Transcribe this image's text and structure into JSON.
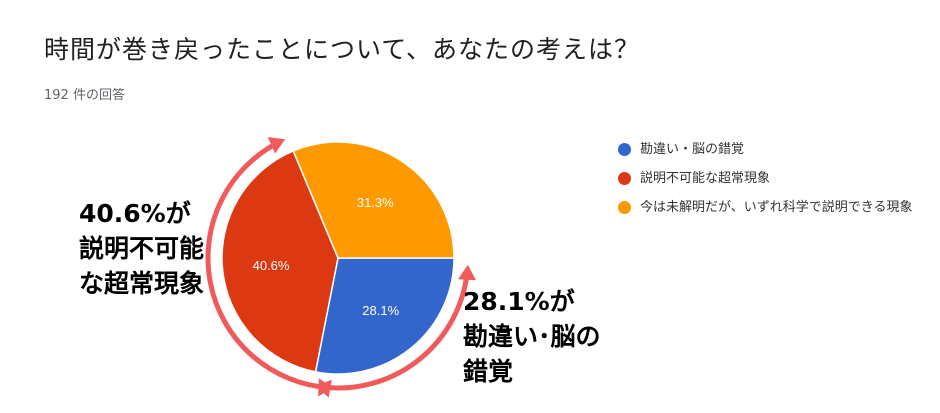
{
  "title": "時間が巻き戻ったことについて、あなたの考えは？",
  "response_count": "192 件の回答",
  "chart_data": {
    "type": "pie",
    "title": "時間が巻き戻ったことについて、あなたの考えは？",
    "slices": [
      {
        "name": "勘違い・脳の錯覚",
        "value": 28.1,
        "label": "28.1%",
        "color": "#3366cc"
      },
      {
        "name": "説明不可能な超常現象",
        "value": 40.6,
        "label": "40.6%",
        "color": "#dc3912"
      },
      {
        "name": "今は未解明だが、いずれ科学で説明できる現象",
        "value": 31.3,
        "label": "31.3%",
        "color": "#ff9900"
      }
    ],
    "legend_position": "right"
  },
  "legend": [
    {
      "label": "勘違い・脳の錯覚",
      "color": "#3366cc"
    },
    {
      "label": "説明不可能な超常現象",
      "color": "#dc3912"
    },
    {
      "label": "今は未解明だが、いずれ科学で説明できる現象",
      "color": "#ff9900"
    }
  ],
  "annotations": {
    "left": {
      "line1": "40.6%が",
      "line2": "説明不可能",
      "line3": "な超常現象"
    },
    "right": {
      "line1": "28.1%が",
      "line2": "勘違い･脳の",
      "line3": "錯覚"
    },
    "arrow_color": "#f05a5a"
  }
}
